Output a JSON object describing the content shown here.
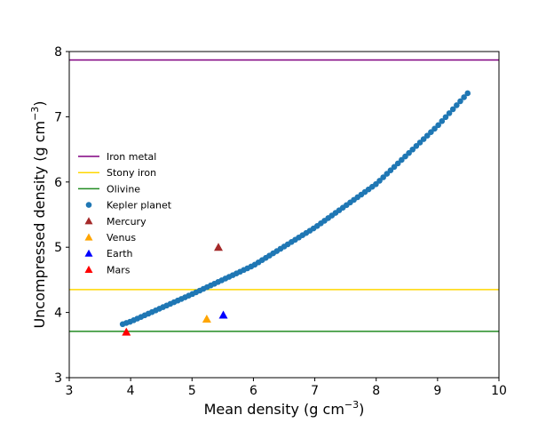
{
  "chart_data": {
    "type": "scatter",
    "title": "",
    "xlabel": "Mean density (g cm",
    "xlabel_sup": "−3",
    "xlabel_close": ")",
    "ylabel": "Uncompressed density (g cm",
    "ylabel_sup": "−3",
    "ylabel_close": ")",
    "xlim": [
      3,
      10
    ],
    "ylim": [
      3,
      8
    ],
    "xticks": [
      "3",
      "4",
      "5",
      "6",
      "7",
      "8",
      "9",
      "10"
    ],
    "yticks": [
      "3",
      "4",
      "5",
      "6",
      "7",
      "8"
    ],
    "grid": false,
    "legend_position": "center-left",
    "hlines": [
      {
        "name": "Iron metal",
        "y": 7.87,
        "color": "#800080"
      },
      {
        "name": "Stony iron",
        "y": 4.35,
        "color": "#FFD700"
      },
      {
        "name": "Olivine",
        "y": 3.71,
        "color": "#228B22"
      }
    ],
    "kepler_series": {
      "name": "Kepler planet",
      "color": "#1f77b4",
      "x_start": 3.87,
      "x_end": 9.49,
      "count": 95,
      "curve_points": [
        [
          3.87,
          3.82
        ],
        [
          4.0,
          3.86
        ],
        [
          5.0,
          4.28
        ],
        [
          6.0,
          4.72
        ],
        [
          7.0,
          5.3
        ],
        [
          8.0,
          5.97
        ],
        [
          9.0,
          6.86
        ],
        [
          9.49,
          7.36
        ]
      ]
    },
    "planets": [
      {
        "name": "Mercury",
        "x": 5.43,
        "y": 5.0,
        "color": "#A52A2A"
      },
      {
        "name": "Venus",
        "x": 5.24,
        "y": 3.9,
        "color": "#FFA500"
      },
      {
        "name": "Earth",
        "x": 5.51,
        "y": 3.96,
        "color": "#0000FF"
      },
      {
        "name": "Mars",
        "x": 3.93,
        "y": 3.7,
        "color": "#FF0000"
      }
    ]
  }
}
